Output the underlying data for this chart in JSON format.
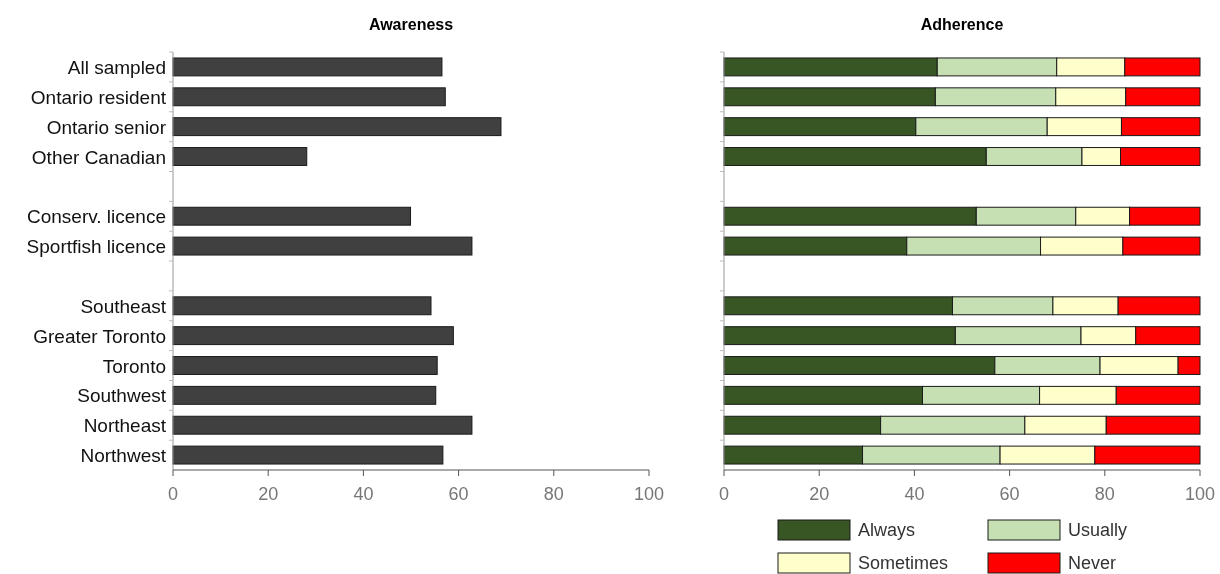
{
  "chart_data": [
    {
      "type": "bar",
      "orientation": "horizontal",
      "title": "Awareness",
      "categories": [
        "All sampled",
        "Ontario resident",
        "Ontario senior",
        "Other Canadian",
        null,
        "Conserv. licence",
        "Sportfish licence",
        null,
        "Southeast",
        "Greater Toronto",
        "Toronto",
        "Southwest",
        "Northeast",
        "Northwest"
      ],
      "values": [
        56.5,
        57.2,
        68.9,
        28.1,
        null,
        49.9,
        62.8,
        null,
        54.2,
        58.9,
        55.5,
        55.2,
        62.8,
        56.7
      ],
      "color": "#404040",
      "xlim": [
        0,
        100
      ],
      "xticks": [
        0,
        20,
        40,
        60,
        80,
        100
      ]
    },
    {
      "type": "bar",
      "orientation": "horizontal",
      "stacked": true,
      "title": "Adherence",
      "categories": [
        null,
        null,
        null,
        null,
        null,
        null,
        null,
        null,
        null,
        null,
        null,
        null,
        null,
        null
      ],
      "legend": "bottom",
      "xlim": [
        0,
        100
      ],
      "xticks": [
        0,
        20,
        40,
        60,
        80,
        100
      ],
      "series": [
        {
          "name": "Always",
          "color": "#375623",
          "values": [
            44.8,
            44.4,
            40.3,
            55.1,
            null,
            53.0,
            38.4,
            null,
            48.0,
            48.6,
            56.9,
            41.7,
            32.9,
            29.1
          ]
        },
        {
          "name": "Usually",
          "color": "#c6e0b4",
          "values": [
            25.1,
            25.3,
            27.6,
            20.1,
            null,
            20.9,
            28.1,
            null,
            21.1,
            26.4,
            22.1,
            24.6,
            30.3,
            28.9
          ]
        },
        {
          "name": "Sometimes",
          "color": "#ffffcc",
          "values": [
            14.3,
            14.7,
            15.6,
            8.1,
            null,
            11.3,
            17.3,
            null,
            13.7,
            11.5,
            16.4,
            16.1,
            17.1,
            19.9
          ]
        },
        {
          "name": "Never",
          "color": "#ff0000",
          "values": [
            15.8,
            15.6,
            16.5,
            16.7,
            null,
            14.8,
            16.2,
            null,
            17.2,
            13.5,
            4.6,
            17.6,
            19.7,
            22.1
          ]
        }
      ]
    }
  ]
}
